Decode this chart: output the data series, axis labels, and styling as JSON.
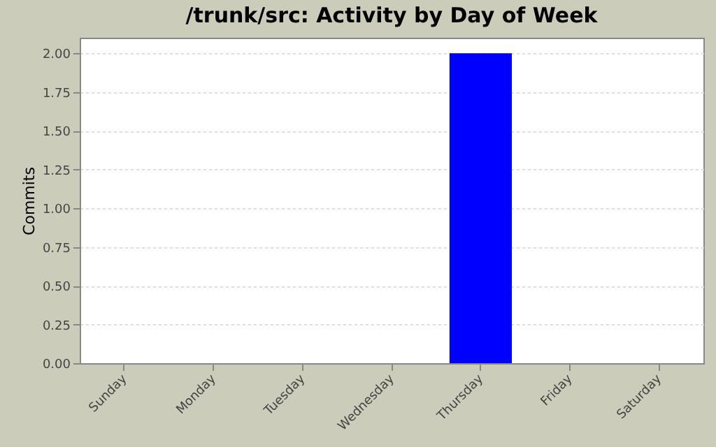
{
  "chart_data": {
    "type": "bar",
    "title": "/trunk/src: Activity by Day of Week",
    "ylabel": "Commits",
    "categories": [
      "Sunday",
      "Monday",
      "Tuesday",
      "Wednesday",
      "Thursday",
      "Friday",
      "Saturday"
    ],
    "values": [
      0,
      0,
      0,
      0,
      2,
      0,
      0
    ],
    "color": "#0000ff",
    "ylim": [
      0,
      2.1
    ],
    "yticks": [
      {
        "value": 0,
        "label": "0.00"
      },
      {
        "value": 0.25,
        "label": "0.25"
      },
      {
        "value": 0.5,
        "label": "0.50"
      },
      {
        "value": 0.75,
        "label": "0.75"
      },
      {
        "value": 1,
        "label": "1.00"
      },
      {
        "value": 1.25,
        "label": "1.25"
      },
      {
        "value": 1.5,
        "label": "1.50"
      },
      {
        "value": 1.75,
        "label": "1.75"
      },
      {
        "value": 2,
        "label": "2.00"
      }
    ],
    "grid": "y"
  }
}
